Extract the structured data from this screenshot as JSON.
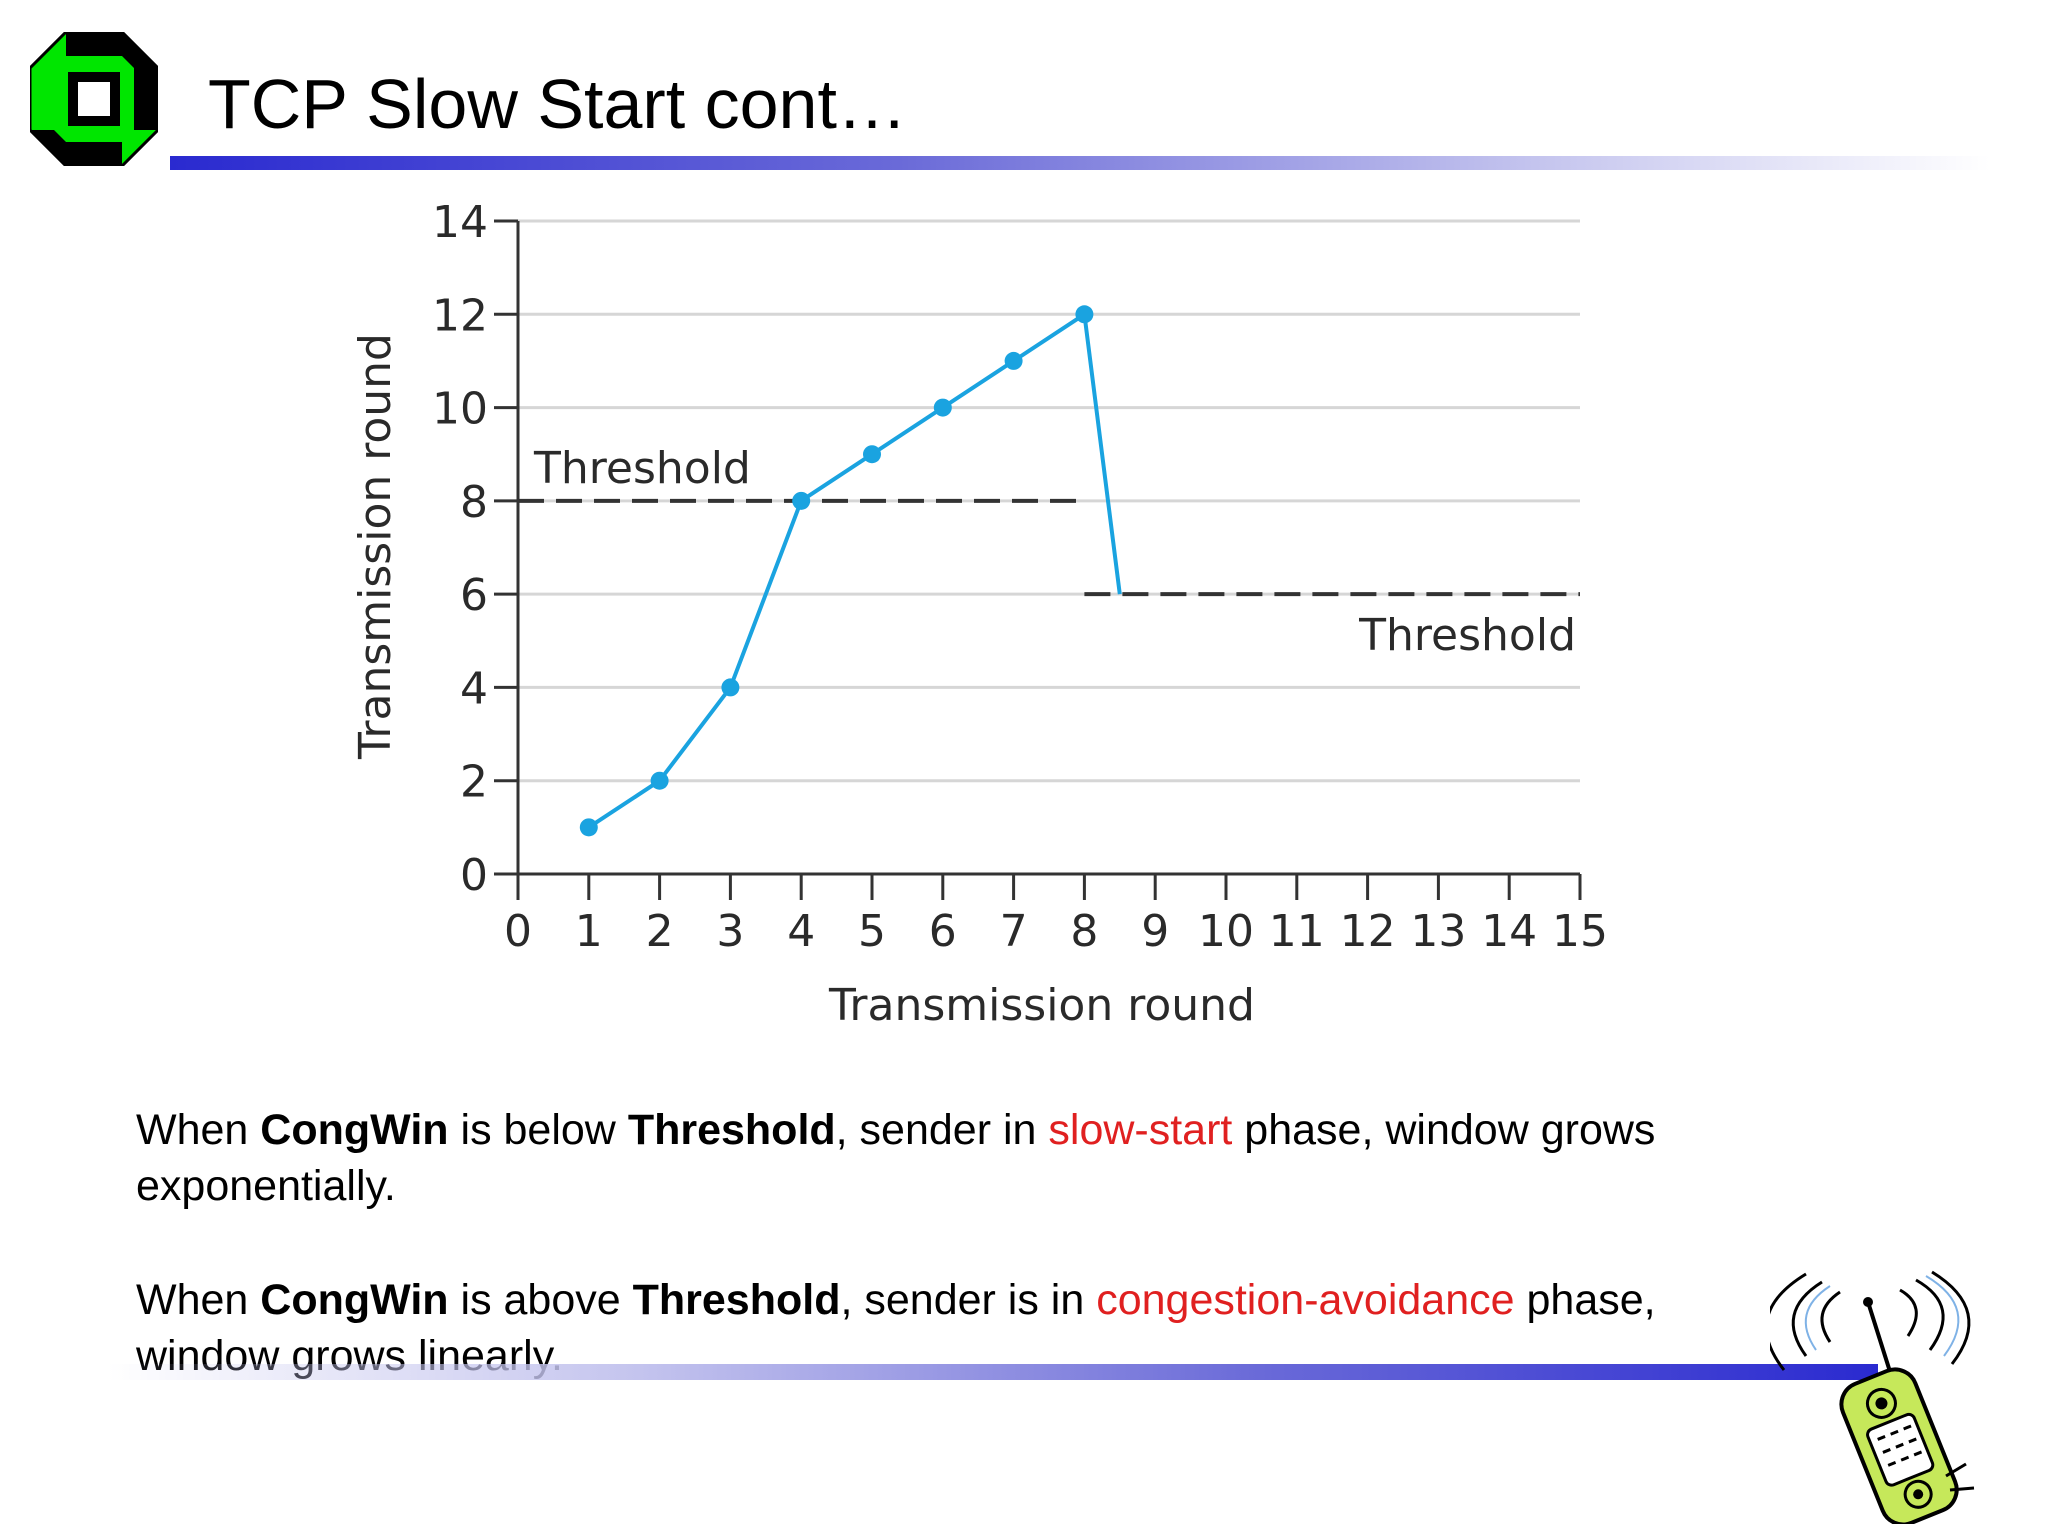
{
  "slide": {
    "title": "TCP Slow Start cont…"
  },
  "colors": {
    "line": "#1aa3e0",
    "logo_green": "#00e600",
    "title_bar": "#2a2ad0",
    "highlight_red": "#e02020"
  },
  "chart_data": {
    "type": "line",
    "x": [
      1,
      2,
      3,
      4,
      5,
      6,
      7,
      8,
      8.5
    ],
    "series": [
      {
        "values": [
          1,
          2,
          4,
          8,
          9,
          10,
          11,
          12,
          6
        ]
      }
    ],
    "markers_count": 8,
    "xlabel": "Transmission round",
    "ylabel": "Transmission round",
    "xlim": [
      0,
      15
    ],
    "ylim": [
      0,
      14
    ],
    "x_ticks": [
      "0",
      "1",
      "2",
      "3",
      "4",
      "5",
      "6",
      "7",
      "8",
      "9",
      "10",
      "11",
      "12",
      "13",
      "14",
      "15"
    ],
    "y_ticks": [
      "0",
      "2",
      "4",
      "6",
      "8",
      "10",
      "12",
      "14"
    ],
    "grid": true,
    "thresholds": [
      {
        "label": "Threshold",
        "value": 8,
        "x_from": 0,
        "x_to": 8
      },
      {
        "label": "Threshold",
        "value": 6,
        "x_from": 8,
        "x_to": 15
      }
    ]
  },
  "paragraphs": [
    {
      "t1": "When ",
      "b1": "CongWin",
      "t2": " is below ",
      "b2": "Threshold",
      "t3": ", sender in ",
      "r1": "slow-start",
      "t4": " phase, window grows exponentially."
    },
    {
      "t1": "When ",
      "b1": "CongWin",
      "t2": " is above ",
      "b2": "Threshold",
      "t3": ", sender is in ",
      "r1": "congestion-avoidance",
      "t4": " phase, window grows linearly."
    }
  ]
}
